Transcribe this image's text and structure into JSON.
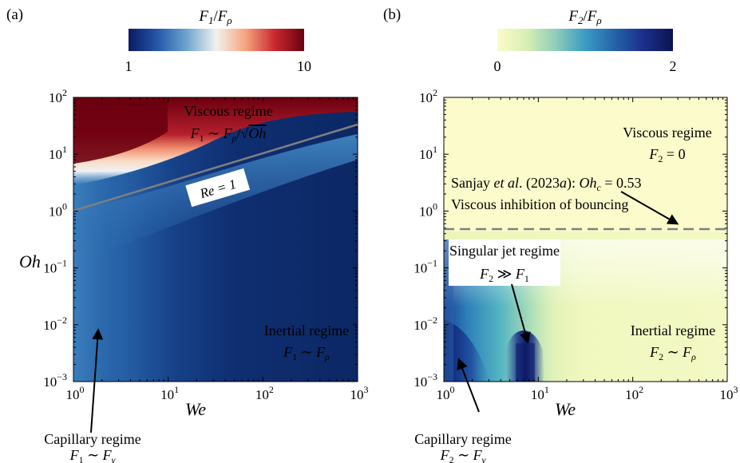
{
  "panels": [
    {
      "label": "(a)",
      "colorbar": {
        "title": "F1/Fρ",
        "min_label": "1",
        "max_label": "10",
        "stops": [
          "#0a1a63",
          "#2458a8",
          "#6fa6cf",
          "#f2f2ee",
          "#f6a37f",
          "#c9282e",
          "#6b0010"
        ]
      },
      "xlabel": "We",
      "ylabel": "Oh",
      "x_ticks": [
        "10^0",
        "10^1",
        "10^2",
        "10^3"
      ],
      "y_ticks": [
        "10^-3",
        "10^-2",
        "10^-1",
        "10^0",
        "10^1",
        "10^2"
      ],
      "annotations": {
        "viscous": [
          "Viscous regime",
          "F1 ∼ Fρ/√Oh"
        ],
        "re_line": "Re = 1",
        "inertial": [
          "Inertial regime",
          "F1 ∼ Fρ"
        ],
        "capillary": [
          "Capillary regime",
          "F1 ∼ Fγ"
        ]
      }
    },
    {
      "label": "(b)",
      "colorbar": {
        "title": "F2/Fρ",
        "min_label": "0",
        "max_label": "2",
        "stops": [
          "#fbfbc9",
          "#d8efb4",
          "#8ecdb9",
          "#3b9bc3",
          "#2463a8",
          "#1b2f8c",
          "#0b1450"
        ]
      },
      "xlabel": "We",
      "ylabel": "",
      "x_ticks": [
        "10^0",
        "10^1",
        "10^2",
        "10^3"
      ],
      "y_ticks": [
        "10^-3",
        "10^-2",
        "10^-1",
        "10^0",
        "10^1",
        "10^2"
      ],
      "annotations": {
        "viscous": [
          "Viscous regime",
          "F2 = 0"
        ],
        "sanjay": [
          "Sanjay et al. (2023a): Ohc = 0.53",
          "Viscous inhibition of bouncing"
        ],
        "singular": [
          "Singular jet regime",
          "F2 ≫ F1"
        ],
        "inertial": [
          "Inertial regime",
          "F2 ∼ Fρ"
        ],
        "capillary": [
          "Capillary regime",
          "F2 ∼ Fγ"
        ]
      }
    }
  ],
  "chart_data": [
    {
      "type": "heatmap",
      "panel": "(a)",
      "title": "F1/Fρ",
      "xlabel": "We",
      "ylabel": "Oh",
      "x_scale": "log",
      "y_scale": "log",
      "xlim": [
        1,
        1000
      ],
      "ylim": [
        0.001,
        100
      ],
      "color_range": [
        1,
        10
      ],
      "color_scale": "log",
      "colormap": "RdBu_r",
      "lines": [
        {
          "label": "Re = 1",
          "color": "#7f7f7f",
          "style": "solid",
          "x": [
            1,
            1000
          ],
          "y": [
            1.1,
            34.8
          ]
        }
      ],
      "regions": [
        {
          "name": "Viscous regime",
          "law": "F1 ∼ Fρ/√Oh",
          "value_trend": "high (≈10) above Re = 1"
        },
        {
          "name": "Inertial regime",
          "law": "F1 ∼ Fρ",
          "value_trend": "≈1 at large We, small Oh"
        },
        {
          "name": "Capillary regime",
          "law": "F1 ∼ Fγ",
          "value_trend": "≈2 at We ≈ 1"
        }
      ]
    },
    {
      "type": "heatmap",
      "panel": "(b)",
      "title": "F2/Fρ",
      "xlabel": "We",
      "x_scale": "log",
      "y_scale": "log",
      "xlim": [
        1,
        1000
      ],
      "ylim": [
        0.001,
        100
      ],
      "color_range": [
        0,
        2
      ],
      "color_scale": "linear",
      "colormap": "YlGnBu",
      "lines": [
        {
          "label": "Ohc = 0.53",
          "color": "#7f7f7f",
          "style": "dashed",
          "x": [
            1,
            1000
          ],
          "y": [
            0.53,
            0.53
          ]
        }
      ],
      "regions": [
        {
          "name": "Viscous regime",
          "law": "F2 = 0",
          "value_trend": "0 above Ohc"
        },
        {
          "name": "Singular jet regime",
          "law": "F2 ≫ F1",
          "value_trend": "≈2 near We ≈ 8–12, Oh < 0.005"
        },
        {
          "name": "Inertial regime",
          "law": "F2 ∼ Fρ",
          "value_trend": "≈0.2–0.4"
        },
        {
          "name": "Capillary regime",
          "law": "F2 ∼ Fγ",
          "value_trend": "≈1.5–2 at We ≈ 1"
        }
      ]
    }
  ]
}
